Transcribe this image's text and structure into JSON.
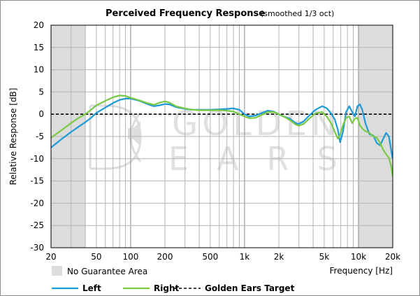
{
  "chart_data": {
    "type": "line",
    "title": "Perceived Frequency Response",
    "subtitle": "(smoothed 1/3 oct)",
    "xlabel": "Frequency [Hz]",
    "ylabel": "Relative Response [dB]",
    "xscale": "log",
    "xlim": [
      20,
      20000
    ],
    "ylim": [
      -30,
      20
    ],
    "grid": true,
    "x_ticks": [
      {
        "value": 20,
        "label": "20"
      },
      {
        "value": 50,
        "label": "50"
      },
      {
        "value": 100,
        "label": "100"
      },
      {
        "value": 200,
        "label": "200"
      },
      {
        "value": 500,
        "label": "500"
      },
      {
        "value": 1000,
        "label": "1k"
      },
      {
        "value": 2000,
        "label": "2k"
      },
      {
        "value": 5000,
        "label": "5k"
      },
      {
        "value": 10000,
        "label": "10k"
      },
      {
        "value": 20000,
        "label": "20k"
      }
    ],
    "y_ticks": [
      20,
      15,
      10,
      5,
      0,
      -5,
      -10,
      -15,
      -20,
      -25,
      -30
    ],
    "shaded_regions": [
      {
        "name": "No Guarantee Area",
        "x": [
          20,
          40
        ]
      },
      {
        "name": "No Guarantee Area",
        "x": [
          10000,
          20000
        ]
      }
    ],
    "legend_position": "bottom",
    "watermark": "GOLDEN EARS",
    "series": [
      {
        "name": "Left",
        "color": "#1a9ad6",
        "points": [
          [
            20,
            -7.5
          ],
          [
            25,
            -5.5
          ],
          [
            30,
            -4
          ],
          [
            35,
            -2.8
          ],
          [
            40,
            -1.8
          ],
          [
            45,
            -0.8
          ],
          [
            50,
            0.3
          ],
          [
            60,
            1.5
          ],
          [
            70,
            2.5
          ],
          [
            80,
            3.2
          ],
          [
            90,
            3.5
          ],
          [
            100,
            3.5
          ],
          [
            120,
            3
          ],
          [
            140,
            2.3
          ],
          [
            160,
            1.8
          ],
          [
            180,
            2
          ],
          [
            200,
            2.3
          ],
          [
            220,
            2.2
          ],
          [
            250,
            1.6
          ],
          [
            300,
            1.2
          ],
          [
            350,
            1
          ],
          [
            400,
            1
          ],
          [
            500,
            1
          ],
          [
            600,
            1.1
          ],
          [
            700,
            1.2
          ],
          [
            800,
            1.3
          ],
          [
            900,
            1
          ],
          [
            1000,
            0
          ],
          [
            1100,
            -0.5
          ],
          [
            1250,
            -0.3
          ],
          [
            1400,
            0.2
          ],
          [
            1600,
            0.8
          ],
          [
            1800,
            0.6
          ],
          [
            2000,
            0
          ],
          [
            2200,
            -0.5
          ],
          [
            2500,
            -1
          ],
          [
            2800,
            -2
          ],
          [
            3000,
            -2.2
          ],
          [
            3300,
            -1.6
          ],
          [
            3700,
            -0.3
          ],
          [
            4200,
            1
          ],
          [
            4800,
            1.8
          ],
          [
            5300,
            1.3
          ],
          [
            5800,
            0
          ],
          [
            6200,
            -1.2
          ],
          [
            6600,
            -3.5
          ],
          [
            6900,
            -6.3
          ],
          [
            7300,
            -4
          ],
          [
            7800,
            0.5
          ],
          [
            8300,
            1.8
          ],
          [
            8800,
            0.5
          ],
          [
            9300,
            -0.5
          ],
          [
            9800,
            1.8
          ],
          [
            10300,
            2.2
          ],
          [
            10800,
            1
          ],
          [
            11500,
            -2
          ],
          [
            12500,
            -4.5
          ],
          [
            13500,
            -4.8
          ],
          [
            14500,
            -6.5
          ],
          [
            15500,
            -7
          ],
          [
            16500,
            -5.5
          ],
          [
            17500,
            -4.2
          ],
          [
            18500,
            -5
          ],
          [
            19500,
            -8.5
          ],
          [
            20000,
            -10
          ]
        ]
      },
      {
        "name": "Right",
        "color": "#7ac943",
        "points": [
          [
            20,
            -5.3
          ],
          [
            25,
            -3.5
          ],
          [
            30,
            -2
          ],
          [
            35,
            -0.8
          ],
          [
            40,
            0
          ],
          [
            45,
            1
          ],
          [
            50,
            2
          ],
          [
            60,
            3
          ],
          [
            70,
            3.8
          ],
          [
            80,
            4.2
          ],
          [
            90,
            4.1
          ],
          [
            100,
            3.7
          ],
          [
            120,
            3.1
          ],
          [
            140,
            2.5
          ],
          [
            160,
            2.1
          ],
          [
            180,
            2.6
          ],
          [
            200,
            2.9
          ],
          [
            220,
            2.6
          ],
          [
            250,
            1.8
          ],
          [
            300,
            1.3
          ],
          [
            350,
            1
          ],
          [
            400,
            0.9
          ],
          [
            500,
            0.9
          ],
          [
            600,
            0.9
          ],
          [
            700,
            0.8
          ],
          [
            800,
            0.6
          ],
          [
            900,
            0
          ],
          [
            1000,
            -0.5
          ],
          [
            1100,
            -0.9
          ],
          [
            1250,
            -0.8
          ],
          [
            1400,
            -0.2
          ],
          [
            1600,
            0.5
          ],
          [
            1800,
            0.5
          ],
          [
            2000,
            0
          ],
          [
            2200,
            -0.5
          ],
          [
            2500,
            -1.3
          ],
          [
            2800,
            -2.3
          ],
          [
            3000,
            -2.6
          ],
          [
            3300,
            -2.2
          ],
          [
            3700,
            -1
          ],
          [
            4200,
            0.2
          ],
          [
            4800,
            0.5
          ],
          [
            5300,
            -0.6
          ],
          [
            5800,
            -2.2
          ],
          [
            6200,
            -4
          ],
          [
            6600,
            -5.5
          ],
          [
            6900,
            -4.6
          ],
          [
            7300,
            -2.5
          ],
          [
            7800,
            -0.8
          ],
          [
            8300,
            -0.5
          ],
          [
            8800,
            -2
          ],
          [
            9300,
            -1
          ],
          [
            9800,
            -0.8
          ],
          [
            10300,
            -2.5
          ],
          [
            10800,
            -3.2
          ],
          [
            11500,
            -3.8
          ],
          [
            12500,
            -4.2
          ],
          [
            13500,
            -5
          ],
          [
            14500,
            -5.3
          ],
          [
            15500,
            -6.5
          ],
          [
            16500,
            -8
          ],
          [
            17500,
            -9
          ],
          [
            18500,
            -9.8
          ],
          [
            19500,
            -12
          ],
          [
            20000,
            -14
          ]
        ]
      },
      {
        "name": "Golden Ears Target",
        "color": "#000000",
        "dashed": true,
        "points": [
          [
            20,
            0
          ],
          [
            20000,
            0
          ]
        ]
      }
    ]
  }
}
